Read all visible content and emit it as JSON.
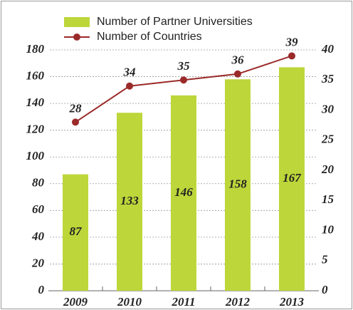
{
  "chart_data": {
    "type": "bar",
    "categories": [
      "2009",
      "2010",
      "2011",
      "2012",
      "2013"
    ],
    "series": [
      {
        "name": "Number of Partner Universities",
        "type": "bar",
        "color": "#bdd63a",
        "values": [
          87,
          133,
          146,
          158,
          167
        ]
      },
      {
        "name": "Number of Countries",
        "type": "line",
        "axis": "y2",
        "color": "#9b2a2a",
        "values": [
          28,
          34,
          35,
          36,
          39
        ]
      }
    ],
    "ylim": [
      0,
      180
    ],
    "yticks": [
      0,
      20,
      40,
      60,
      80,
      100,
      120,
      140,
      160,
      180
    ],
    "y2lim": [
      0,
      40
    ],
    "y2ticks": [
      0,
      5,
      10,
      15,
      20,
      25,
      30,
      35,
      40
    ],
    "grid": true
  }
}
